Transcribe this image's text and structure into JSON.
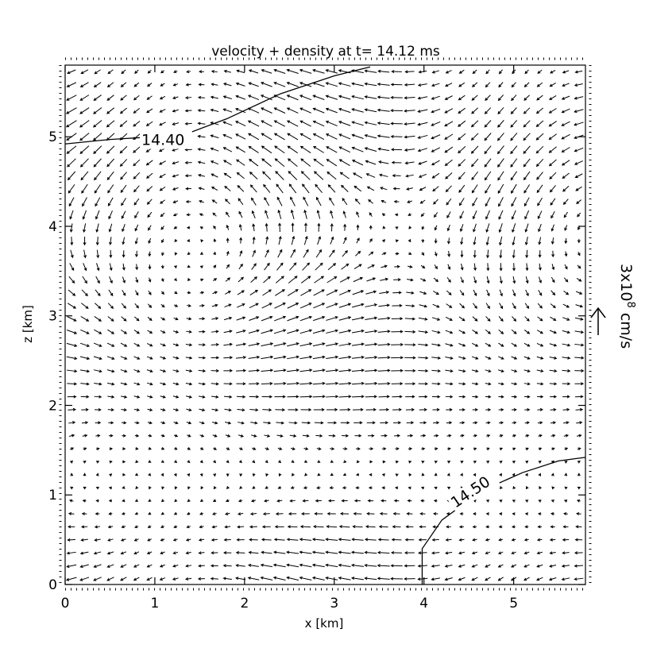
{
  "chart_data": {
    "type": "vector_field",
    "title": "velocity + density at t=  14.12 ms",
    "xlabel": "x [km]",
    "ylabel": "z [km]",
    "xlim": [
      0,
      5.8
    ],
    "ylim": [
      0,
      5.8
    ],
    "x_ticks": [
      "0",
      "1",
      "2",
      "3",
      "4",
      "5"
    ],
    "y_ticks": [
      "0",
      "1",
      "2",
      "3",
      "4",
      "5"
    ],
    "contours": [
      {
        "label": "14.40",
        "points": [
          [
            0.0,
            4.92
          ],
          [
            0.5,
            4.97
          ],
          [
            1.0,
            5.0
          ],
          [
            1.4,
            5.05
          ],
          [
            1.8,
            5.2
          ],
          [
            2.4,
            5.48
          ],
          [
            3.0,
            5.68
          ],
          [
            3.4,
            5.78
          ]
        ]
      },
      {
        "label": "14.50",
        "points": [
          [
            3.98,
            0.0
          ],
          [
            3.98,
            0.4
          ],
          [
            4.2,
            0.72
          ],
          [
            4.65,
            1.05
          ],
          [
            5.1,
            1.25
          ],
          [
            5.5,
            1.38
          ],
          [
            5.8,
            1.42
          ]
        ]
      }
    ],
    "reference_vector": {
      "value": "3x10",
      "exponent": "8",
      "unit": "cm/s"
    },
    "grid": false,
    "legend": "none"
  },
  "colors": {
    "ink": "#000000",
    "background": "#ffffff"
  }
}
